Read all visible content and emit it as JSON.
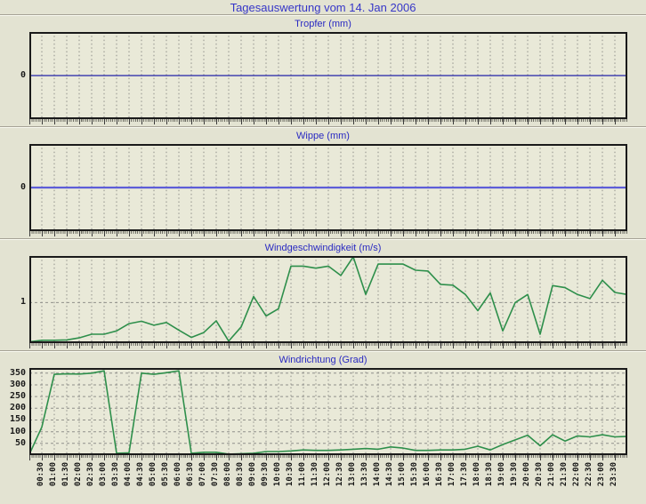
{
  "page": {
    "title": "Tagesauswertung vom 14. Jan 2006",
    "background": "#e3e3d2",
    "plot_background": "#e9e9d8",
    "title_color": "#3636c8",
    "chart_title_color": "#2a2ac2",
    "grid_color": "#90908a",
    "axis_color": "#1a1a1a"
  },
  "chart_data": {
    "x_labels": [
      "00:30",
      "01:00",
      "01:30",
      "02:00",
      "02:30",
      "03:00",
      "03:30",
      "04:00",
      "04:30",
      "05:00",
      "05:30",
      "06:00",
      "06:30",
      "07:00",
      "07:30",
      "08:00",
      "08:30",
      "09:00",
      "09:30",
      "10:00",
      "10:30",
      "11:00",
      "11:30",
      "12:00",
      "12:30",
      "13:00",
      "13:30",
      "14:00",
      "14:30",
      "15:00",
      "15:30",
      "16:00",
      "16:30",
      "17:00",
      "17:30",
      "18:00",
      "18:30",
      "19:00",
      "19:30",
      "20:00",
      "20:30",
      "21:00",
      "21:30",
      "22:00",
      "22:30",
      "23:00",
      "23:30"
    ],
    "charts": [
      {
        "id": "tropfer",
        "title": "Tropfer (mm)",
        "type": "line",
        "line_color": "#2323a8",
        "line_width": 1.2,
        "ylim": [
          -1,
          1
        ],
        "y_ticks": [
          {
            "label": "0",
            "value": 0,
            "grid": false
          }
        ],
        "edge_left": 0,
        "edge_right": 0,
        "values": [
          0,
          0,
          0,
          0,
          0,
          0,
          0,
          0,
          0,
          0,
          0,
          0,
          0,
          0,
          0,
          0,
          0,
          0,
          0,
          0,
          0,
          0,
          0,
          0,
          0,
          0,
          0,
          0,
          0,
          0,
          0,
          0,
          0,
          0,
          0,
          0,
          0,
          0,
          0,
          0,
          0,
          0,
          0,
          0,
          0,
          0,
          0
        ]
      },
      {
        "id": "wippe",
        "title": "Wippe (mm)",
        "type": "line",
        "line_color": "#5e5ed8",
        "line_width": 2.2,
        "ylim": [
          -1,
          1
        ],
        "y_ticks": [
          {
            "label": "0",
            "value": 0,
            "grid": false
          }
        ],
        "edge_left": 0,
        "edge_right": 0,
        "values": [
          0,
          0,
          0,
          0,
          0,
          0,
          0,
          0,
          0,
          0,
          0,
          0,
          0,
          0,
          0,
          0,
          0,
          0,
          0,
          0,
          0,
          0,
          0,
          0,
          0,
          0,
          0,
          0,
          0,
          0,
          0,
          0,
          0,
          0,
          0,
          0,
          0,
          0,
          0,
          0,
          0,
          0,
          0,
          0,
          0,
          0,
          0
        ]
      },
      {
        "id": "windgeschwindigkeit",
        "title": "Windgeschwindigkeit (m/s)",
        "type": "line",
        "line_color": "#2e8f4b",
        "line_width": 1.6,
        "ylim": [
          0,
          2.15
        ],
        "y_ticks": [
          {
            "label": "1",
            "value": 1,
            "grid": true
          }
        ],
        "edge_left": 0.03,
        "edge_right": 1.2,
        "values": [
          0.07,
          0.07,
          0.08,
          0.13,
          0.22,
          0.22,
          0.3,
          0.48,
          0.54,
          0.44,
          0.51,
          0.32,
          0.14,
          0.26,
          0.55,
          0.05,
          0.4,
          1.15,
          0.67,
          0.85,
          1.9,
          1.9,
          1.85,
          1.9,
          1.67,
          2.15,
          1.2,
          1.95,
          1.95,
          1.95,
          1.8,
          1.78,
          1.45,
          1.43,
          1.2,
          0.8,
          1.24,
          0.3,
          1.0,
          1.2,
          0.22,
          1.42,
          1.37,
          1.2,
          1.1,
          1.55,
          1.25
        ]
      },
      {
        "id": "windrichtung",
        "title": "Windrichtung (Grad)",
        "type": "line",
        "line_color": "#2e8f4b",
        "line_width": 1.6,
        "ylim": [
          0,
          372
        ],
        "y_ticks": [
          {
            "label": "350",
            "value": 350,
            "grid": true
          },
          {
            "label": "300",
            "value": 300,
            "grid": true
          },
          {
            "label": "250",
            "value": 250,
            "grid": true
          },
          {
            "label": "200",
            "value": 200,
            "grid": true
          },
          {
            "label": "150",
            "value": 150,
            "grid": true
          },
          {
            "label": "100",
            "value": 100,
            "grid": true
          },
          {
            "label": "50",
            "value": 50,
            "grid": true
          }
        ],
        "edge_left": 0,
        "edge_right": 80,
        "show_x_labels": true,
        "values": [
          120,
          345,
          347,
          346,
          350,
          360,
          8,
          10,
          350,
          345,
          352,
          360,
          8,
          12,
          12,
          4,
          6,
          8,
          15,
          15,
          18,
          22,
          20,
          20,
          22,
          25,
          28,
          25,
          35,
          30,
          20,
          20,
          22,
          22,
          25,
          38,
          22,
          45,
          65,
          85,
          40,
          87,
          60,
          82,
          78,
          87,
          78
        ]
      }
    ]
  }
}
